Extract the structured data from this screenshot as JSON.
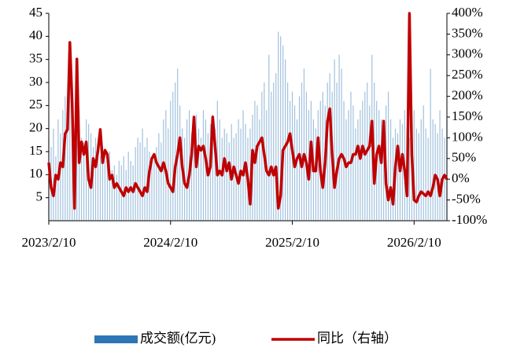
{
  "chart_data": {
    "type": "bar-line",
    "categories": [
      "2023/2/10",
      null,
      null,
      null,
      null,
      null,
      null,
      null,
      null,
      null,
      null,
      null,
      null,
      null,
      null,
      null,
      null,
      null,
      null,
      null,
      null,
      null,
      null,
      null,
      null,
      null,
      null,
      null,
      null,
      null,
      null,
      null,
      null,
      null,
      null,
      null,
      null,
      null,
      null,
      null,
      null,
      null,
      null,
      null,
      null,
      null,
      null,
      null,
      null,
      null,
      null,
      null,
      "2024/2/10",
      null,
      null,
      null,
      null,
      null,
      null,
      null,
      null,
      null,
      null,
      null,
      null,
      null,
      null,
      null,
      null,
      null,
      null,
      null,
      null,
      null,
      null,
      null,
      null,
      null,
      null,
      null,
      null,
      null,
      null,
      null,
      null,
      null,
      null,
      null,
      null,
      null,
      null,
      null,
      null,
      null,
      null,
      null,
      null,
      null,
      null,
      null,
      null,
      null,
      null,
      null,
      "2025/2/10",
      null,
      null,
      null,
      null,
      null,
      null,
      null,
      null,
      null,
      null,
      null,
      null,
      null,
      null,
      null,
      null,
      null,
      null,
      null,
      null,
      null,
      null,
      null,
      null,
      null,
      null,
      null,
      null,
      null,
      null,
      null,
      null,
      null,
      null,
      null,
      null,
      null,
      null,
      null,
      null,
      null,
      null,
      null,
      null,
      null,
      null,
      null,
      null,
      null,
      null,
      null,
      "2026/2/10",
      null,
      null,
      null,
      null,
      null,
      null,
      null,
      null,
      null,
      null,
      null,
      null,
      null,
      null
    ],
    "series": [
      {
        "name": "成交额(亿元)",
        "color": "#2e75b6",
        "values": [
          18,
          16,
          20,
          14,
          22,
          19,
          24,
          27,
          25,
          33,
          28,
          20,
          30,
          24,
          18,
          17,
          22,
          21,
          19,
          16,
          18,
          15,
          14,
          16,
          13,
          12,
          15,
          11,
          12,
          10,
          13,
          12,
          14,
          11,
          15,
          13,
          12,
          16,
          18,
          17,
          20,
          16,
          18,
          15,
          14,
          13,
          16,
          19,
          17,
          22,
          24,
          20,
          26,
          28,
          30,
          33,
          25,
          20,
          18,
          22,
          24,
          19,
          21,
          23,
          20,
          18,
          24,
          22,
          19,
          21,
          23,
          20,
          26,
          22,
          18,
          20,
          19,
          17,
          21,
          18,
          19,
          22,
          20,
          24,
          21,
          18,
          20,
          23,
          26,
          25,
          22,
          28,
          30,
          24,
          36,
          28,
          30,
          32,
          41,
          40,
          38,
          35,
          30,
          26,
          28,
          25,
          22,
          27,
          30,
          33,
          28,
          24,
          26,
          22,
          20,
          24,
          26,
          28,
          25,
          30,
          32,
          28,
          35,
          30,
          36,
          33,
          26,
          22,
          24,
          28,
          25,
          20,
          22,
          24,
          26,
          28,
          30,
          25,
          36,
          30,
          26,
          24,
          22,
          20,
          25,
          28,
          22,
          18,
          20,
          19,
          22,
          21,
          24,
          20,
          18,
          22,
          24,
          20,
          19,
          22,
          25,
          20,
          18,
          33,
          22,
          21,
          19,
          24,
          20,
          18,
          22
        ]
      },
      {
        "name": "同比（右轴）",
        "color": "#c00000",
        "axis": "y2",
        "values": [
          40,
          -20,
          -40,
          10,
          0,
          40,
          30,
          110,
          120,
          330,
          180,
          -70,
          290,
          40,
          90,
          60,
          90,
          0,
          -20,
          50,
          30,
          70,
          120,
          40,
          70,
          60,
          0,
          10,
          -20,
          -10,
          -20,
          -30,
          -40,
          -20,
          -30,
          -20,
          -30,
          -10,
          -20,
          -30,
          -40,
          -20,
          -30,
          20,
          50,
          60,
          40,
          30,
          20,
          40,
          20,
          -10,
          -20,
          -30,
          30,
          60,
          100,
          30,
          -10,
          -20,
          10,
          60,
          150,
          30,
          80,
          70,
          80,
          50,
          10,
          30,
          150,
          80,
          10,
          20,
          10,
          50,
          20,
          40,
          0,
          30,
          10,
          -10,
          20,
          10,
          40,
          0,
          -60,
          70,
          40,
          80,
          90,
          100,
          60,
          20,
          10,
          30,
          10,
          30,
          -70,
          -40,
          70,
          80,
          90,
          110,
          70,
          30,
          50,
          60,
          30,
          60,
          40,
          0,
          90,
          20,
          20,
          100,
          20,
          -20,
          40,
          140,
          170,
          60,
          -20,
          20,
          50,
          60,
          50,
          30,
          40,
          40,
          60,
          60,
          80,
          50,
          80,
          60,
          70,
          80,
          140,
          -10,
          60,
          80,
          40,
          140,
          -10,
          -50,
          -20,
          -60,
          30,
          80,
          20,
          60,
          20,
          -40,
          400,
          60,
          -50,
          -55,
          -40,
          -30,
          -35,
          -40,
          -30,
          -40,
          -20,
          10,
          0,
          -40,
          0,
          10,
          0
        ]
      }
    ],
    "ylim": [
      0,
      45
    ],
    "yticks": [
      5,
      10,
      15,
      20,
      25,
      30,
      35,
      40,
      45
    ],
    "y2lim": [
      -100,
      400
    ],
    "y2ticks": [
      {
        "value": -100,
        "label": "-100%"
      },
      {
        "value": -50,
        "label": "-50%"
      },
      {
        "value": 0,
        "label": "0%"
      },
      {
        "value": 50,
        "label": "50%"
      },
      {
        "value": 100,
        "label": "100%"
      },
      {
        "value": 150,
        "label": "150%"
      },
      {
        "value": 200,
        "label": "200%"
      },
      {
        "value": 250,
        "label": "250%"
      },
      {
        "value": 300,
        "label": "300%"
      },
      {
        "value": 350,
        "label": "350%"
      },
      {
        "value": 400,
        "label": "400%"
      }
    ]
  }
}
